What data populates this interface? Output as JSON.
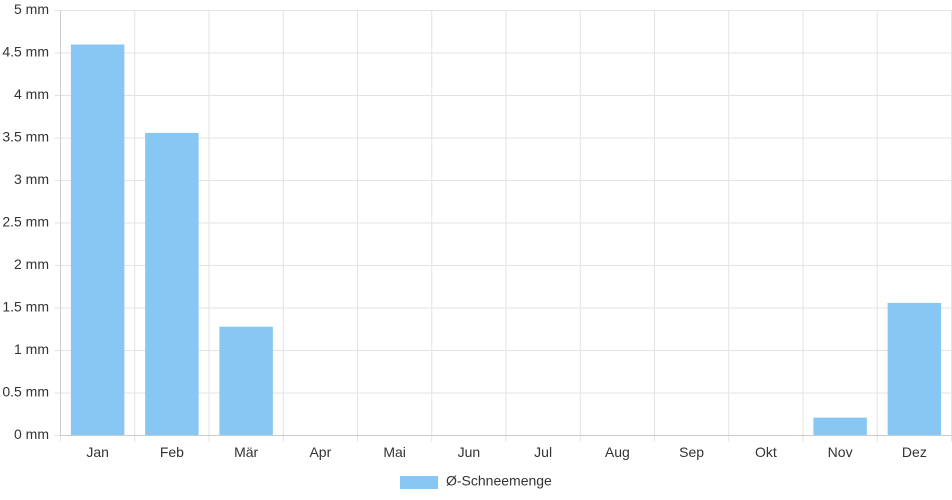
{
  "chart_data": {
    "type": "bar",
    "categories": [
      "Jan",
      "Feb",
      "Mär",
      "Apr",
      "Mai",
      "Jun",
      "Jul",
      "Aug",
      "Sep",
      "Okt",
      "Nov",
      "Dez"
    ],
    "series": [
      {
        "name": "Ø-Schneemenge",
        "color": "#88c6f3",
        "values": [
          4.6,
          3.56,
          1.28,
          0,
          0,
          0,
          0,
          0,
          0,
          0,
          0.21,
          1.56
        ]
      }
    ],
    "ylim": [
      0,
      5
    ],
    "yticks": [
      {
        "value": 0,
        "label": "0 mm"
      },
      {
        "value": 0.5,
        "label": "0.5 mm"
      },
      {
        "value": 1,
        "label": "1 mm"
      },
      {
        "value": 1.5,
        "label": "1.5 mm"
      },
      {
        "value": 2,
        "label": "2 mm"
      },
      {
        "value": 2.5,
        "label": "2.5 mm"
      },
      {
        "value": 3,
        "label": "3 mm"
      },
      {
        "value": 3.5,
        "label": "3.5 mm"
      },
      {
        "value": 4,
        "label": "4 mm"
      },
      {
        "value": 4.5,
        "label": "4.5 mm"
      },
      {
        "value": 5,
        "label": "5 mm"
      }
    ],
    "grid": true,
    "legend": "bottom"
  }
}
